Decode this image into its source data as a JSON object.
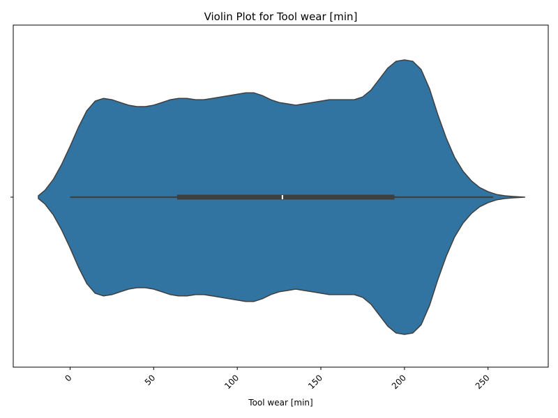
{
  "chart_data": {
    "type": "violin",
    "title": "Violin Plot for Tool wear [min]",
    "xlabel": "Tool wear [min]",
    "ylabel": "",
    "xlim": [
      -34,
      286
    ],
    "xticks": [
      0,
      50,
      100,
      150,
      200,
      250
    ],
    "grid": false,
    "colors": {
      "body": "#3274a1",
      "outline": "#3f3f3f",
      "box": "#3f3f3f",
      "median": "#ffffff"
    },
    "density_profile": {
      "x": [
        -19,
        -15,
        -10,
        -5,
        0,
        5,
        10,
        15,
        20,
        25,
        30,
        35,
        40,
        45,
        50,
        55,
        60,
        65,
        70,
        75,
        80,
        85,
        90,
        95,
        100,
        105,
        110,
        115,
        120,
        125,
        130,
        135,
        140,
        145,
        150,
        155,
        160,
        165,
        170,
        175,
        180,
        185,
        190,
        195,
        200,
        205,
        210,
        215,
        220,
        225,
        230,
        235,
        240,
        245,
        250,
        255,
        260,
        265,
        272
      ],
      "relative_width": [
        0.01,
        0.05,
        0.13,
        0.24,
        0.37,
        0.51,
        0.63,
        0.7,
        0.72,
        0.71,
        0.69,
        0.67,
        0.66,
        0.66,
        0.67,
        0.69,
        0.71,
        0.72,
        0.72,
        0.71,
        0.71,
        0.72,
        0.73,
        0.74,
        0.75,
        0.76,
        0.76,
        0.74,
        0.71,
        0.69,
        0.68,
        0.67,
        0.68,
        0.69,
        0.7,
        0.71,
        0.71,
        0.71,
        0.71,
        0.73,
        0.78,
        0.86,
        0.94,
        0.99,
        1.0,
        0.99,
        0.93,
        0.79,
        0.6,
        0.43,
        0.29,
        0.19,
        0.12,
        0.07,
        0.04,
        0.02,
        0.01,
        0.005,
        0.0
      ]
    },
    "box": {
      "min": 0,
      "q1": 64,
      "median": 127,
      "q3": 194,
      "max": 253
    }
  }
}
